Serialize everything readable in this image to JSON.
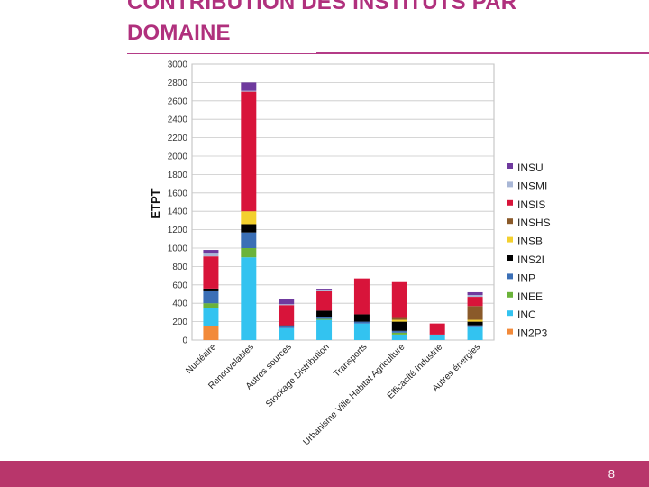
{
  "slide": {
    "title_line1": "CONTRIBUTION DES INSTITUTS PAR",
    "title_line2": "DOMAINE",
    "page_number": "8"
  },
  "colors": {
    "title": "#b0307d",
    "footer": "#b8366b",
    "INSU": "#6f3a9e",
    "INSMI": "#a9b7d6",
    "INSIS": "#d8143a",
    "INSHS": "#8a5a2a",
    "INSB": "#f3d02e",
    "INS2I": "#000000",
    "INP": "#3b6fb6",
    "INEE": "#6bb33a",
    "INC": "#33c3f0",
    "IN2P3": "#f28a3a"
  },
  "chart_data": {
    "type": "bar",
    "stacked": true,
    "title": "",
    "xlabel": "",
    "ylabel": "ETPT",
    "ylim": [
      0,
      3000
    ],
    "yticks": [
      "0",
      "200",
      "400",
      "600",
      "800",
      "1000",
      "1200",
      "1400",
      "1600",
      "1800",
      "2000",
      "2200",
      "2400",
      "2600",
      "2800",
      "3000"
    ],
    "grid": true,
    "legend_position": "right",
    "categories": [
      "Nucléaire",
      "Renouvelables",
      "Autres sources",
      "Stockage Distribution",
      "Transports",
      "Urbanisme Ville Habitat Agriculture",
      "Efficacité Industrie",
      "Autres énergies"
    ],
    "series": [
      {
        "name": "IN2P3",
        "values": [
          150,
          0,
          0,
          0,
          0,
          0,
          0,
          0
        ]
      },
      {
        "name": "INC",
        "values": [
          200,
          900,
          130,
          220,
          180,
          60,
          50,
          140
        ]
      },
      {
        "name": "INEE",
        "values": [
          50,
          100,
          0,
          10,
          0,
          20,
          0,
          0
        ]
      },
      {
        "name": "INP",
        "values": [
          130,
          170,
          20,
          20,
          20,
          20,
          0,
          20
        ]
      },
      {
        "name": "INS2I",
        "values": [
          30,
          90,
          10,
          70,
          80,
          100,
          10,
          40
        ]
      },
      {
        "name": "INSB",
        "values": [
          0,
          140,
          0,
          0,
          0,
          20,
          0,
          20
        ]
      },
      {
        "name": "INSHS",
        "values": [
          0,
          0,
          0,
          0,
          0,
          20,
          0,
          150
        ]
      },
      {
        "name": "INSIS",
        "values": [
          350,
          1300,
          220,
          210,
          390,
          390,
          120,
          100
        ]
      },
      {
        "name": "INSMI",
        "values": [
          30,
          10,
          10,
          10,
          0,
          0,
          0,
          20
        ]
      },
      {
        "name": "INSU",
        "values": [
          40,
          90,
          60,
          10,
          0,
          0,
          0,
          30
        ]
      }
    ],
    "legend_entries": [
      "INSU",
      "INSMI",
      "INSIS",
      "INSHS",
      "INSB",
      "INS2I",
      "INP",
      "INEE",
      "INC",
      "IN2P3"
    ]
  }
}
